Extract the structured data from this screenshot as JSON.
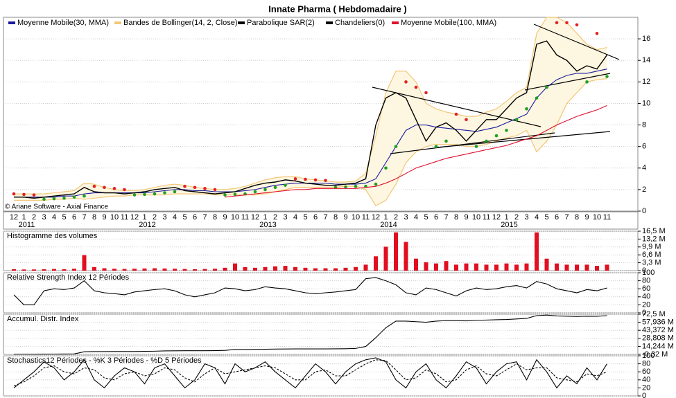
{
  "chart_data": [
    {
      "type": "line",
      "title": "Innate Pharma  ( Hebdomadaire )",
      "note": "© Ariane Software - Axial Finance",
      "categories": [
        "12",
        "1",
        "2",
        "3",
        "4",
        "5",
        "6",
        "7",
        "8",
        "9",
        "10",
        "11",
        "12",
        "1",
        "2",
        "3",
        "4",
        "5",
        "6",
        "7",
        "8",
        "9",
        "10",
        "11",
        "12",
        "1",
        "2",
        "3",
        "4",
        "5",
        "6",
        "7",
        "8",
        "9",
        "10",
        "11",
        "12",
        "1",
        "2",
        "3",
        "4",
        "5",
        "6",
        "7",
        "8",
        "9",
        "10",
        "11",
        "12",
        "1",
        "2",
        "3",
        "4",
        "5",
        "6",
        "7",
        "8",
        "9",
        "10",
        "11"
      ],
      "year_ticks": [
        {
          "value": 1,
          "label": "2011"
        },
        {
          "value": 13,
          "label": "2012"
        },
        {
          "value": 25,
          "label": "2013"
        },
        {
          "value": 37,
          "label": "2014"
        },
        {
          "value": 49,
          "label": "2015"
        }
      ],
      "ylim": [
        0,
        18
      ],
      "yticks": [
        0,
        2,
        4,
        6,
        8,
        10,
        12,
        14,
        16
      ],
      "grid": true,
      "series": [
        {
          "name": "Moyenne Mobile(30, MMA)",
          "color": "#1a1aa0",
          "style": "line",
          "values": [
            1.3,
            1.3,
            1.3,
            1.3,
            1.3,
            1.4,
            1.4,
            1.6,
            1.7,
            1.7,
            1.7,
            1.7,
            1.7,
            1.7,
            1.8,
            1.9,
            2.0,
            2.0,
            1.9,
            1.9,
            1.8,
            1.8,
            1.8,
            1.9,
            2.0,
            2.2,
            2.4,
            2.5,
            2.6,
            2.6,
            2.6,
            2.6,
            2.5,
            2.5,
            2.5,
            2.6,
            3.0,
            4.5,
            6.0,
            7.5,
            8.0,
            8.0,
            7.8,
            7.7,
            7.6,
            7.5,
            7.4,
            7.6,
            7.8,
            8.2,
            8.6,
            9.0,
            10.5,
            11.5,
            12.2,
            12.6,
            12.8,
            12.8,
            13.0,
            13.2
          ]
        },
        {
          "name": "Bandes de Bollinger(14, 2, Close)",
          "color": "#f2c778",
          "style": "band",
          "values": [
            1.6,
            1.6,
            1.6,
            1.6,
            1.7,
            1.8,
            1.9,
            2.6,
            2.5,
            2.2,
            2.0,
            1.9,
            1.9,
            2.0,
            2.2,
            2.4,
            2.5,
            2.4,
            2.2,
            2.1,
            2.0,
            2.0,
            2.1,
            2.3,
            2.6,
            2.9,
            3.1,
            3.2,
            3.2,
            3.0,
            2.9,
            2.8,
            2.7,
            2.7,
            2.8,
            3.5,
            7.0,
            11.0,
            13.0,
            13.0,
            12.0,
            10.0,
            9.5,
            9.2,
            9.0,
            8.8,
            8.8,
            9.2,
            9.5,
            10.2,
            11.0,
            11.5,
            16.5,
            18.0,
            18.0,
            17.5,
            16.5,
            15.5,
            15.0,
            15.2
          ],
          "lower": [
            1.0,
            1.0,
            1.0,
            1.0,
            1.1,
            1.1,
            1.2,
            1.1,
            1.2,
            1.3,
            1.4,
            1.4,
            1.5,
            1.5,
            1.5,
            1.5,
            1.6,
            1.6,
            1.6,
            1.6,
            1.5,
            1.5,
            1.5,
            1.5,
            1.5,
            1.6,
            1.8,
            2.0,
            2.2,
            2.2,
            2.2,
            2.2,
            2.2,
            2.3,
            2.3,
            2.0,
            0.5,
            1.0,
            2.5,
            4.5,
            5.5,
            6.0,
            6.2,
            6.2,
            6.2,
            6.0,
            6.0,
            6.2,
            6.5,
            6.8,
            7.0,
            7.5,
            5.5,
            6.5,
            8.0,
            10.0,
            11.0,
            12.0,
            12.2,
            12.3
          ]
        },
        {
          "name": "Parabolique SAR(2)",
          "color": "#000000",
          "style": "dots",
          "above_color": "#e32020",
          "below_color": "#1fa01f",
          "values": [
            1.6,
            1.55,
            1.5,
            1.1,
            1.15,
            1.2,
            1.3,
            1.4,
            2.3,
            2.2,
            2.1,
            2.0,
            1.5,
            1.55,
            1.6,
            1.7,
            1.8,
            2.3,
            2.2,
            2.1,
            2.0,
            1.5,
            1.55,
            1.6,
            1.8,
            2.0,
            2.2,
            2.4,
            3.0,
            2.95,
            2.9,
            2.85,
            2.2,
            2.25,
            2.3,
            2.3,
            2.5,
            4.0,
            6.0,
            12.0,
            11.5,
            11.0,
            6.0,
            6.5,
            9.0,
            8.5,
            6.0,
            6.5,
            7.0,
            7.5,
            8.5,
            9.5,
            10.5,
            11.5,
            17.5,
            17.5,
            17.3,
            12.0,
            16.5,
            12.5
          ]
        },
        {
          "name": "Chandeliers(0)",
          "color": "#000000",
          "style": "close",
          "values": [
            1.3,
            1.3,
            1.2,
            1.3,
            1.4,
            1.5,
            1.6,
            2.2,
            1.8,
            1.7,
            1.7,
            1.6,
            1.7,
            1.8,
            2.0,
            2.1,
            2.2,
            1.9,
            1.8,
            1.7,
            1.6,
            1.7,
            1.8,
            2.1,
            2.4,
            2.6,
            2.7,
            2.9,
            2.8,
            2.6,
            2.5,
            2.4,
            2.4,
            2.5,
            2.6,
            3.0,
            8.0,
            10.5,
            11.0,
            10.5,
            8.5,
            6.5,
            7.8,
            8.2,
            7.5,
            6.5,
            7.5,
            8.5,
            8.5,
            9.5,
            10.5,
            11.0,
            15.5,
            15.8,
            14.5,
            14.0,
            13.0,
            13.5,
            13.2,
            14.5
          ]
        },
        {
          "name": "Moyenne Mobile(100, MMA)",
          "color": "#e01030",
          "style": "line",
          "values": [
            null,
            null,
            null,
            null,
            null,
            null,
            null,
            null,
            null,
            null,
            null,
            null,
            null,
            null,
            null,
            null,
            null,
            null,
            null,
            null,
            null,
            1.3,
            1.4,
            1.5,
            1.6,
            1.7,
            1.8,
            1.9,
            2.0,
            2.0,
            2.1,
            2.1,
            2.1,
            2.1,
            2.1,
            2.2,
            2.3,
            2.6,
            3.0,
            3.5,
            4.0,
            4.3,
            4.6,
            4.9,
            5.1,
            5.3,
            5.5,
            5.7,
            5.9,
            6.1,
            6.4,
            6.7,
            7.0,
            7.5,
            8.0,
            8.4,
            8.8,
            9.1,
            9.4,
            9.8
          ]
        }
      ]
    },
    {
      "type": "bar",
      "title": "Histogramme des volumes",
      "ylim": [
        0,
        16.5
      ],
      "grid": true,
      "yticks": [
        {
          "value": 16.5,
          "label": "16,5 M"
        },
        {
          "value": 13.2,
          "label": "13,2 M"
        },
        {
          "value": 9.9,
          "label": "9,9 M"
        },
        {
          "value": 6.6,
          "label": "6,6 M"
        },
        {
          "value": 3.3,
          "label": "3,3 M"
        },
        0
      ],
      "series": [
        {
          "color": "#e01020",
          "values": [
            0.6,
            0.5,
            0.5,
            0.6,
            0.7,
            0.6,
            0.8,
            6.5,
            1.5,
            1.0,
            0.8,
            0.7,
            0.8,
            0.9,
            1.0,
            0.9,
            0.8,
            0.7,
            0.6,
            0.7,
            0.8,
            1.2,
            3.0,
            1.5,
            1.2,
            1.5,
            1.8,
            2.0,
            1.5,
            1.2,
            1.0,
            1.0,
            1.0,
            1.2,
            1.5,
            2.5,
            6.0,
            10.0,
            16.0,
            12.0,
            5.0,
            3.5,
            3.0,
            4.0,
            2.5,
            3.0,
            3.0,
            2.5,
            2.5,
            3.0,
            2.5,
            3.0,
            16.0,
            5.0,
            3.0,
            2.5,
            2.5,
            2.5,
            2.0,
            2.5
          ]
        }
      ]
    },
    {
      "type": "line",
      "title": "Relative Strength Index 12 Périodes",
      "ylim": [
        0,
        100
      ],
      "yticks": [
        100,
        80,
        60,
        40,
        20,
        0
      ],
      "grid": true,
      "series": [
        {
          "color": "#000000",
          "values": [
            45,
            20,
            20,
            55,
            60,
            58,
            62,
            80,
            55,
            50,
            48,
            45,
            52,
            55,
            58,
            60,
            55,
            45,
            40,
            45,
            50,
            62,
            60,
            55,
            58,
            65,
            62,
            60,
            55,
            50,
            48,
            50,
            52,
            55,
            58,
            85,
            88,
            80,
            70,
            50,
            45,
            62,
            58,
            50,
            42,
            55,
            62,
            58,
            60,
            65,
            68,
            62,
            78,
            72,
            60,
            55,
            50,
            58,
            55,
            62
          ]
        }
      ]
    },
    {
      "type": "line",
      "title": "Accumul. Distr. Index",
      "ylim": [
        -0.32,
        72.5
      ],
      "grid": true,
      "yticks": [
        {
          "value": 72.5,
          "label": "72,5 M"
        },
        {
          "value": 57.936,
          "label": "57,936 M"
        },
        {
          "value": 43.372,
          "label": "43,372 M"
        },
        {
          "value": 28.808,
          "label": "28,808 M"
        },
        {
          "value": 14.244,
          "label": "14,244 M"
        },
        {
          "value": -0.32,
          "label": "-0,32 M"
        }
      ],
      "series": [
        {
          "color": "#000000",
          "values": [
            0,
            0,
            0,
            0.2,
            0.3,
            0.4,
            0.5,
            4.5,
            4.8,
            4.8,
            4.9,
            5.0,
            5.0,
            5.2,
            5.5,
            6.0,
            6.2,
            6.3,
            6.3,
            6.4,
            6.5,
            7.0,
            8.5,
            8.6,
            8.8,
            9.0,
            9.3,
            9.5,
            9.6,
            9.6,
            9.7,
            9.7,
            9.8,
            10.0,
            10.5,
            14.0,
            30.0,
            48.0,
            60.0,
            60.0,
            59.0,
            58.0,
            60.0,
            61.0,
            61.0,
            60.5,
            61.5,
            62.0,
            62.5,
            63.0,
            64.0,
            65.0,
            70.0,
            71.0,
            69.5,
            69.0,
            68.5,
            69.0,
            68.8,
            70.0
          ]
        }
      ]
    },
    {
      "type": "line",
      "title": "Stochastics12 Périodes  -  %K 3 Périodes  -  %D 5 Périodes",
      "ylim": [
        0,
        100
      ],
      "yticks": [
        100,
        80,
        60,
        40,
        20,
        0
      ],
      "grid": true,
      "series": [
        {
          "color": "#000000",
          "values": [
            20,
            40,
            60,
            85,
            70,
            40,
            60,
            90,
            40,
            20,
            50,
            70,
            60,
            30,
            70,
            80,
            50,
            20,
            40,
            80,
            70,
            30,
            80,
            60,
            70,
            85,
            60,
            40,
            20,
            50,
            80,
            60,
            30,
            60,
            80,
            90,
            95,
            85,
            40,
            20,
            60,
            80,
            40,
            20,
            50,
            85,
            70,
            30,
            60,
            80,
            85,
            40,
            90,
            60,
            20,
            50,
            30,
            70,
            40,
            80
          ]
        },
        {
          "color": "#000000",
          "dashed": true,
          "values": [
            25,
            35,
            50,
            70,
            75,
            60,
            55,
            70,
            65,
            45,
            40,
            55,
            60,
            50,
            55,
            70,
            65,
            45,
            35,
            55,
            70,
            55,
            60,
            65,
            70,
            75,
            70,
            55,
            40,
            40,
            60,
            65,
            50,
            50,
            65,
            80,
            90,
            88,
            65,
            40,
            45,
            65,
            55,
            35,
            40,
            65,
            75,
            55,
            50,
            65,
            80,
            65,
            70,
            70,
            45,
            40,
            35,
            55,
            50,
            60
          ]
        }
      ]
    }
  ]
}
